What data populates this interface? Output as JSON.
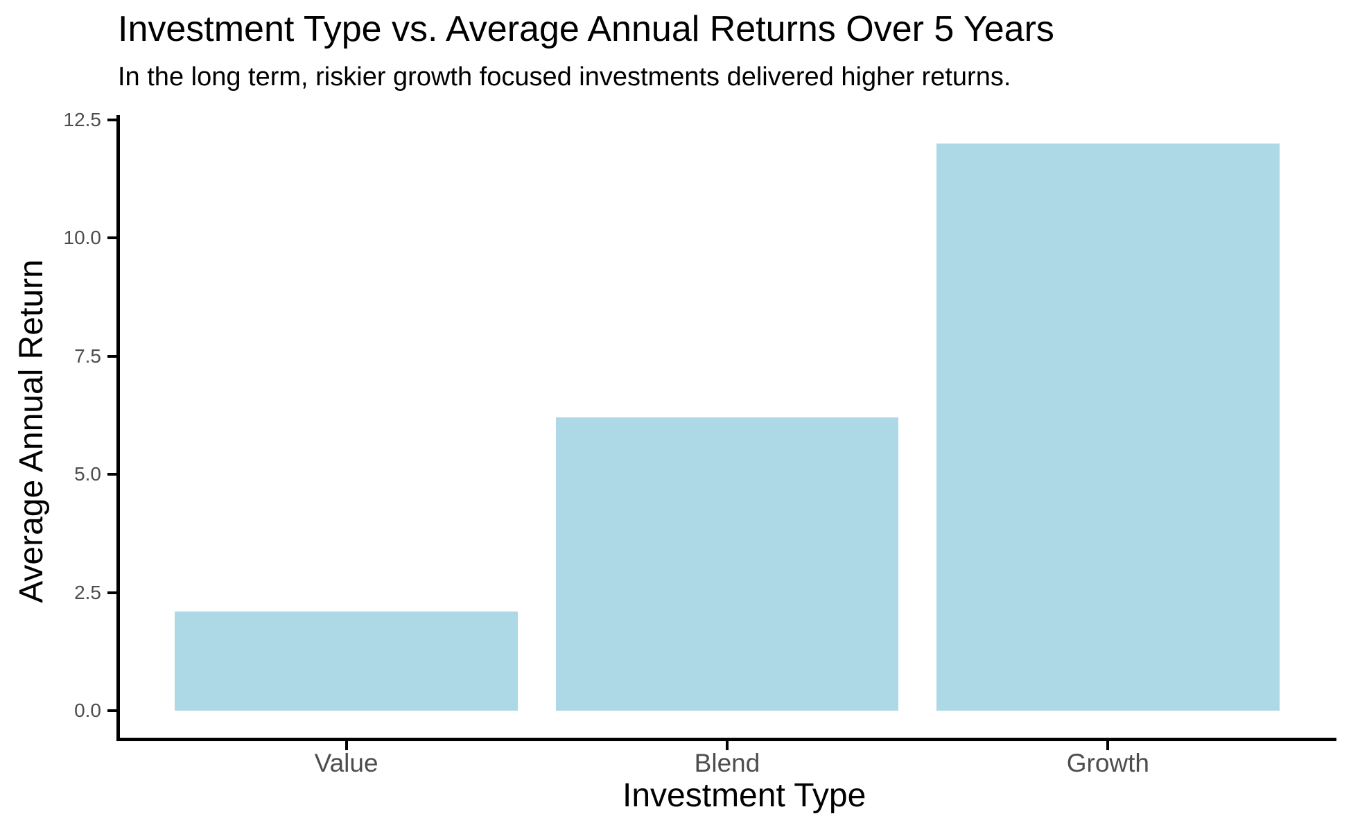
{
  "chart_data": {
    "type": "bar",
    "title": "Investment Type vs. Average Annual Returns Over 5 Years",
    "subtitle": "In the long term, riskier growth focused investments delivered higher returns.",
    "xlabel": "Investment Type",
    "ylabel": "Average Annual Return",
    "categories": [
      "Value",
      "Blend",
      "Growth"
    ],
    "values": [
      2.1,
      6.2,
      12.0
    ],
    "y_ticks": [
      0.0,
      2.5,
      5.0,
      7.5,
      10.0,
      12.5
    ],
    "y_tick_labels": [
      "0.0",
      "2.5",
      "5.0",
      "7.5",
      "10.0",
      "12.5"
    ],
    "ylim": [
      -0.6,
      12.6
    ],
    "grid": false,
    "legend": false,
    "theme": "classic-white-background-black-axis-lines",
    "colors": {
      "bar_fill": "#ADD8E6",
      "axis_line": "#000000",
      "tick_mark": "#000000",
      "tick_label": "#4D4D4D",
      "title_text": "#000000",
      "axis_title_text": "#000000",
      "background": "#FFFFFF"
    }
  }
}
